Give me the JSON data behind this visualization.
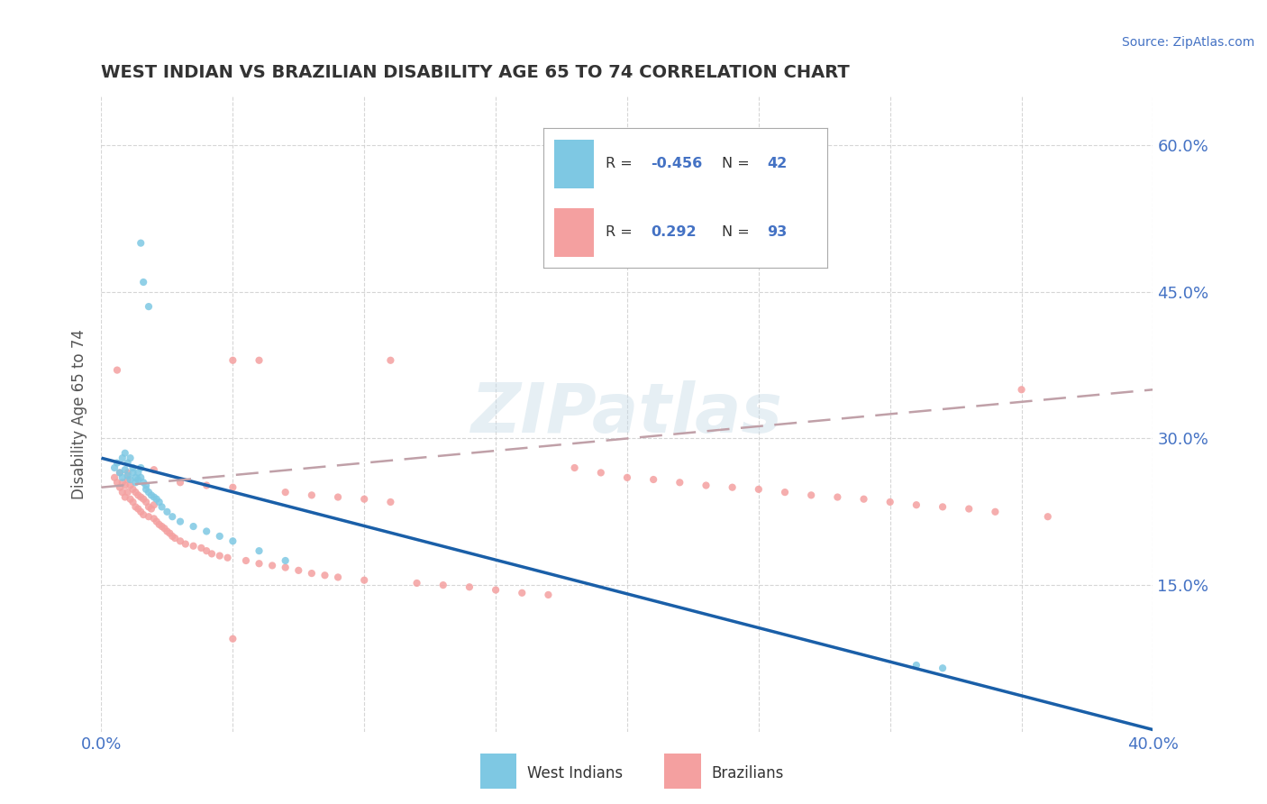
{
  "title": "WEST INDIAN VS BRAZILIAN DISABILITY AGE 65 TO 74 CORRELATION CHART",
  "source": "Source: ZipAtlas.com",
  "ylabel": "Disability Age 65 to 74",
  "legend_label1": "West Indians",
  "legend_label2": "Brazilians",
  "R1": "-0.456",
  "N1": "42",
  "R2": "0.292",
  "N2": "93",
  "xlim": [
    0.0,
    0.4
  ],
  "ylim": [
    0.0,
    0.65
  ],
  "yticks": [
    0.15,
    0.3,
    0.45,
    0.6
  ],
  "ytick_labels": [
    "15.0%",
    "30.0%",
    "45.0%",
    "60.0%"
  ],
  "xticks": [
    0.0,
    0.05,
    0.1,
    0.15,
    0.2,
    0.25,
    0.3,
    0.35,
    0.4
  ],
  "color_west_indian": "#7ec8e3",
  "color_brazilian": "#f4a0a0",
  "color_line_west_indian": "#1a5fa8",
  "color_line_brazilian": "#c0a0a8",
  "background_color": "#ffffff",
  "watermark": "ZIPatlas",
  "title_color": "#333333",
  "source_color": "#4472c4",
  "tick_color": "#4472c4",
  "ylabel_color": "#555555",
  "wi_x": [
    0.005,
    0.006,
    0.007,
    0.008,
    0.008,
    0.009,
    0.009,
    0.01,
    0.01,
    0.011,
    0.011,
    0.012,
    0.012,
    0.013,
    0.013,
    0.014,
    0.014,
    0.015,
    0.015,
    0.015,
    0.016,
    0.016,
    0.017,
    0.017,
    0.018,
    0.018,
    0.019,
    0.02,
    0.021,
    0.022,
    0.023,
    0.025,
    0.027,
    0.03,
    0.035,
    0.04,
    0.045,
    0.05,
    0.06,
    0.07,
    0.31,
    0.32
  ],
  "wi_y": [
    0.27,
    0.275,
    0.265,
    0.28,
    0.26,
    0.285,
    0.268,
    0.275,
    0.262,
    0.28,
    0.258,
    0.27,
    0.265,
    0.26,
    0.255,
    0.265,
    0.258,
    0.5,
    0.27,
    0.26,
    0.255,
    0.46,
    0.252,
    0.248,
    0.245,
    0.435,
    0.242,
    0.24,
    0.238,
    0.235,
    0.23,
    0.225,
    0.22,
    0.215,
    0.21,
    0.205,
    0.2,
    0.195,
    0.185,
    0.175,
    0.068,
    0.065
  ],
  "br_x": [
    0.005,
    0.006,
    0.006,
    0.007,
    0.007,
    0.008,
    0.008,
    0.009,
    0.009,
    0.01,
    0.01,
    0.011,
    0.011,
    0.012,
    0.012,
    0.013,
    0.013,
    0.014,
    0.014,
    0.015,
    0.015,
    0.016,
    0.016,
    0.017,
    0.018,
    0.018,
    0.019,
    0.02,
    0.02,
    0.021,
    0.022,
    0.023,
    0.024,
    0.025,
    0.026,
    0.027,
    0.028,
    0.03,
    0.032,
    0.035,
    0.038,
    0.04,
    0.042,
    0.045,
    0.048,
    0.05,
    0.055,
    0.06,
    0.065,
    0.07,
    0.075,
    0.08,
    0.085,
    0.09,
    0.1,
    0.11,
    0.12,
    0.13,
    0.14,
    0.15,
    0.16,
    0.17,
    0.18,
    0.19,
    0.2,
    0.21,
    0.22,
    0.23,
    0.24,
    0.25,
    0.26,
    0.27,
    0.28,
    0.29,
    0.3,
    0.31,
    0.32,
    0.33,
    0.34,
    0.35,
    0.36,
    0.01,
    0.02,
    0.03,
    0.04,
    0.05,
    0.06,
    0.07,
    0.08,
    0.09,
    0.1,
    0.11,
    0.05
  ],
  "br_y": [
    0.26,
    0.255,
    0.37,
    0.25,
    0.265,
    0.255,
    0.245,
    0.252,
    0.24,
    0.258,
    0.245,
    0.252,
    0.238,
    0.248,
    0.235,
    0.245,
    0.23,
    0.242,
    0.228,
    0.24,
    0.225,
    0.238,
    0.222,
    0.235,
    0.23,
    0.22,
    0.228,
    0.218,
    0.232,
    0.215,
    0.212,
    0.21,
    0.208,
    0.205,
    0.203,
    0.2,
    0.198,
    0.195,
    0.192,
    0.19,
    0.188,
    0.185,
    0.182,
    0.18,
    0.178,
    0.38,
    0.175,
    0.172,
    0.17,
    0.168,
    0.165,
    0.162,
    0.16,
    0.158,
    0.155,
    0.38,
    0.152,
    0.15,
    0.148,
    0.145,
    0.142,
    0.14,
    0.27,
    0.265,
    0.26,
    0.258,
    0.255,
    0.252,
    0.25,
    0.248,
    0.245,
    0.242,
    0.24,
    0.238,
    0.235,
    0.232,
    0.23,
    0.228,
    0.225,
    0.35,
    0.22,
    0.265,
    0.268,
    0.255,
    0.252,
    0.25,
    0.38,
    0.245,
    0.242,
    0.24,
    0.238,
    0.235,
    0.095
  ]
}
